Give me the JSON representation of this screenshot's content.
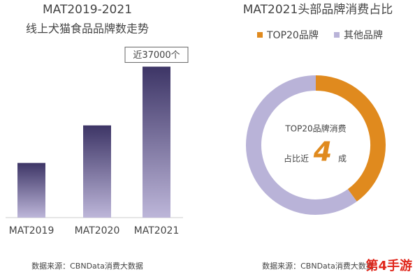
{
  "chart_data": [
    {
      "type": "bar",
      "title": "MAT2019-2021",
      "subtitle": "线上犬猫食品品牌数走势",
      "categories": [
        "MAT2019",
        "MAT2020",
        "MAT2021"
      ],
      "values": [
        13400,
        22600,
        37000
      ],
      "value_labels": [
        null,
        null,
        "近37000个"
      ],
      "ylim": [
        0,
        40000
      ],
      "color": "#3d3566",
      "source": "数据来源：CBNData消费大数据"
    },
    {
      "type": "pie",
      "title": "MAT2021头部品牌消费占比",
      "categories": [
        "TOP20品牌",
        "其他品牌"
      ],
      "values": [
        40,
        60
      ],
      "colors": [
        "#e08a1e",
        "#b9b3d8"
      ],
      "center_text": [
        "TOP20品牌消费",
        "占比近",
        "4",
        "成"
      ],
      "source": "数据来源：CBNData消费大数据"
    }
  ],
  "watermark": "第4手游"
}
